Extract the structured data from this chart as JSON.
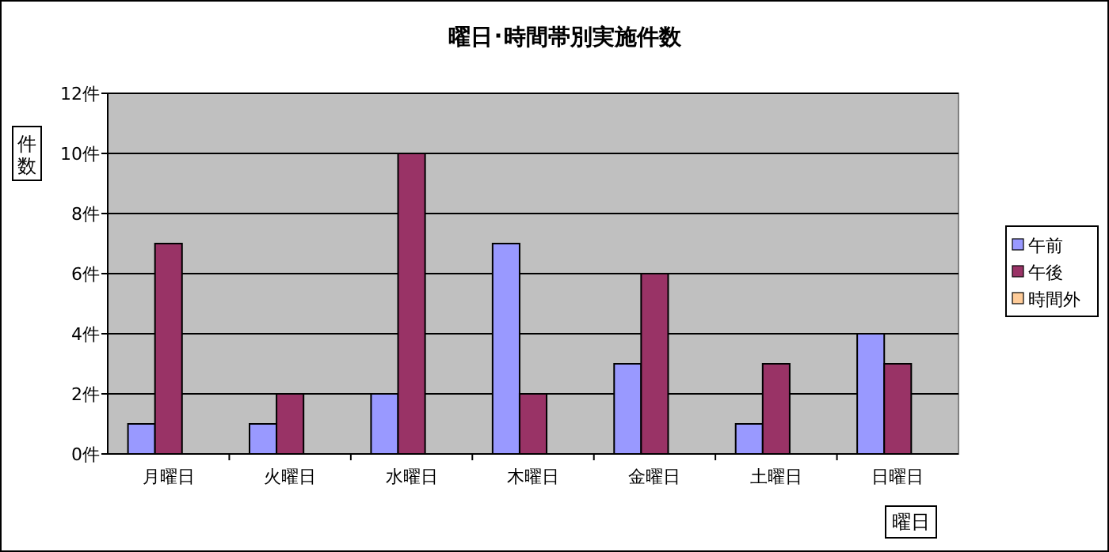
{
  "chart_data": {
    "type": "bar",
    "title": "曜日･時間帯別実施件数",
    "xlabel": "曜日",
    "ylabel": "件数",
    "categories": [
      "月曜日",
      "火曜日",
      "水曜日",
      "木曜日",
      "金曜日",
      "土曜日",
      "日曜日"
    ],
    "series": [
      {
        "name": "午前",
        "color": "#9999ff",
        "values": [
          1,
          1,
          2,
          7,
          3,
          1,
          4
        ]
      },
      {
        "name": "午後",
        "color": "#993366",
        "values": [
          7,
          2,
          10,
          2,
          6,
          3,
          3
        ]
      },
      {
        "name": "時間外",
        "color": "#ffcc99",
        "values": [
          0,
          0,
          0,
          0,
          0,
          0,
          0
        ]
      }
    ],
    "ylim": [
      0,
      12
    ],
    "yticks": [
      {
        "value": 0,
        "label": "0件"
      },
      {
        "value": 2,
        "label": "2件"
      },
      {
        "value": 4,
        "label": "4件"
      },
      {
        "value": 6,
        "label": "6件"
      },
      {
        "value": 8,
        "label": "8件"
      },
      {
        "value": 10,
        "label": "10件"
      },
      {
        "value": 12,
        "label": "12件"
      }
    ],
    "grid": "y",
    "legend": "right"
  }
}
